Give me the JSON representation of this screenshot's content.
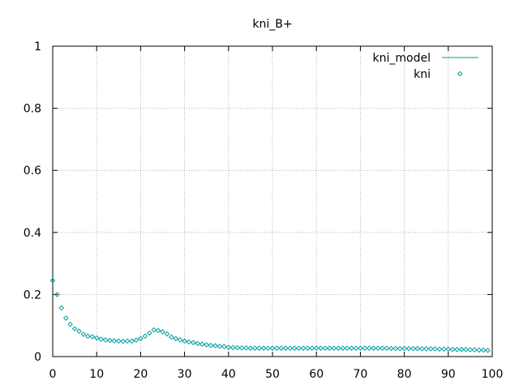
{
  "chart_data": {
    "type": "scatter",
    "title": "kni_B+",
    "xlabel": "",
    "ylabel": "",
    "xlim": [
      0,
      100
    ],
    "ylim": [
      0,
      1
    ],
    "xticks": [
      0,
      10,
      20,
      30,
      40,
      50,
      60,
      70,
      80,
      90,
      100
    ],
    "yticks": [
      0,
      0.2,
      0.4,
      0.6,
      0.8,
      1
    ],
    "ytick_labels": [
      "0",
      "0.2",
      "0.4",
      "0.6",
      "0.8",
      "1"
    ],
    "grid": true,
    "legend_position": "top-right",
    "series": [
      {
        "name": "kni_model",
        "type": "line",
        "color": "#009e9e",
        "x": [],
        "y": []
      },
      {
        "name": "kni",
        "type": "scatter",
        "marker": "diamond",
        "color": "#009e9e",
        "x": [
          0,
          1,
          2,
          3,
          4,
          5,
          6,
          7,
          8,
          9,
          10,
          11,
          12,
          13,
          14,
          15,
          16,
          17,
          18,
          19,
          20,
          21,
          22,
          23,
          24,
          25,
          26,
          27,
          28,
          29,
          30,
          31,
          32,
          33,
          34,
          35,
          36,
          37,
          38,
          39,
          40,
          41,
          42,
          43,
          44,
          45,
          46,
          47,
          48,
          49,
          50,
          51,
          52,
          53,
          54,
          55,
          56,
          57,
          58,
          59,
          60,
          61,
          62,
          63,
          64,
          65,
          66,
          67,
          68,
          69,
          70,
          71,
          72,
          73,
          74,
          75,
          76,
          77,
          78,
          79,
          80,
          81,
          82,
          83,
          84,
          85,
          86,
          87,
          88,
          89,
          90,
          91,
          92,
          93,
          94,
          95,
          96,
          97,
          98,
          99
        ],
        "y": [
          0.245,
          0.2,
          0.157,
          0.124,
          0.104,
          0.09,
          0.082,
          0.072,
          0.066,
          0.064,
          0.06,
          0.056,
          0.054,
          0.052,
          0.051,
          0.05,
          0.049,
          0.05,
          0.05,
          0.053,
          0.058,
          0.066,
          0.076,
          0.086,
          0.084,
          0.08,
          0.073,
          0.063,
          0.058,
          0.054,
          0.05,
          0.047,
          0.045,
          0.042,
          0.04,
          0.038,
          0.036,
          0.035,
          0.033,
          0.032,
          0.03,
          0.029,
          0.029,
          0.028,
          0.028,
          0.027,
          0.027,
          0.027,
          0.027,
          0.027,
          0.027,
          0.027,
          0.027,
          0.027,
          0.027,
          0.027,
          0.027,
          0.027,
          0.027,
          0.027,
          0.027,
          0.027,
          0.027,
          0.027,
          0.027,
          0.027,
          0.027,
          0.027,
          0.027,
          0.027,
          0.027,
          0.027,
          0.027,
          0.027,
          0.027,
          0.027,
          0.027,
          0.026,
          0.026,
          0.026,
          0.026,
          0.026,
          0.026,
          0.026,
          0.025,
          0.025,
          0.025,
          0.025,
          0.024,
          0.024,
          0.024,
          0.023,
          0.023,
          0.023,
          0.023,
          0.022,
          0.022,
          0.021,
          0.021,
          0.02
        ]
      }
    ]
  }
}
